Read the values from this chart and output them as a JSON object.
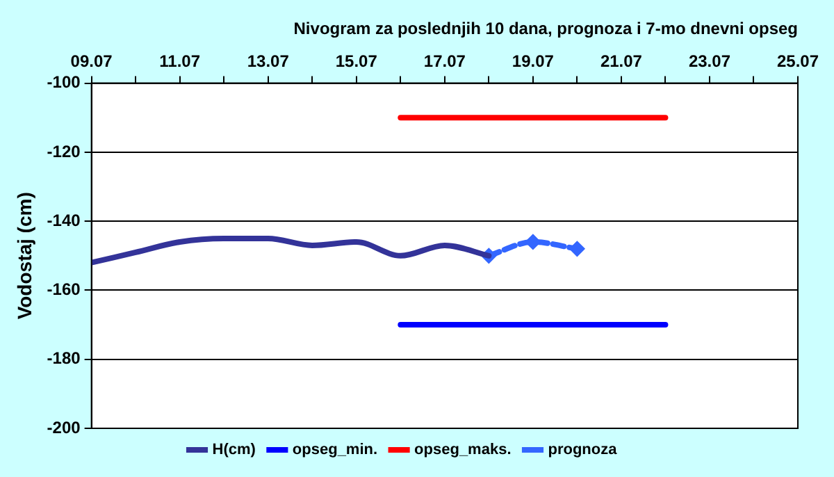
{
  "chart_data": {
    "type": "line",
    "title": "Nivogram za poslednjih 10 dana, prognoza i 7-mo dnevni opseg",
    "ylabel": "Vodostaj (cm)",
    "series": [
      {
        "name": "H(cm)",
        "color": "#333399",
        "x": [
          "--07-09",
          "--07-10",
          "--07-11",
          "--07-12",
          "--07-13",
          "--07-14",
          "--07-15",
          "--07-16",
          "--07-17",
          "--07-18"
        ],
        "values": [
          -152,
          -149,
          -146,
          -145,
          -145,
          -147,
          -146,
          -150,
          -147,
          -150
        ],
        "marker": "none",
        "line_style": "solid"
      },
      {
        "name": "opseg_min.",
        "color": "#0000ff",
        "x": [
          "--07-16",
          "--07-22"
        ],
        "values": [
          -170,
          -170
        ],
        "marker": "none",
        "line_style": "solid"
      },
      {
        "name": "opseg_maks.",
        "color": "#ff0000",
        "x": [
          "--07-16",
          "--07-22"
        ],
        "values": [
          -110,
          -110
        ],
        "marker": "none",
        "line_style": "solid"
      },
      {
        "name": "prognoza",
        "color": "#3366ff",
        "x": [
          "--07-18",
          "--07-19",
          "--07-20"
        ],
        "values": [
          -150,
          -146,
          -148
        ],
        "marker": "diamond",
        "line_style": "dashed"
      }
    ],
    "xlim": [
      "--07-09",
      "--07-25"
    ],
    "xticks": [
      {
        "value": "--07-09",
        "label": "09.07"
      },
      {
        "value": "--07-10",
        "label": null
      },
      {
        "value": "--07-11",
        "label": "11.07"
      },
      {
        "value": "--07-12",
        "label": null
      },
      {
        "value": "--07-13",
        "label": "13.07"
      },
      {
        "value": "--07-14",
        "label": null
      },
      {
        "value": "--07-15",
        "label": "15.07"
      },
      {
        "value": "--07-16",
        "label": null
      },
      {
        "value": "--07-17",
        "label": "17.07"
      },
      {
        "value": "--07-18",
        "label": null
      },
      {
        "value": "--07-19",
        "label": "19.07"
      },
      {
        "value": "--07-20",
        "label": null
      },
      {
        "value": "--07-21",
        "label": "21.07"
      },
      {
        "value": "--07-22",
        "label": null
      },
      {
        "value": "--07-23",
        "label": "23.07"
      },
      {
        "value": "--07-24",
        "label": null
      },
      {
        "value": "--07-25",
        "label": "25.07"
      }
    ],
    "ylim": [
      -200,
      -100
    ],
    "yticks": [
      -200,
      -180,
      -160,
      -140,
      -120,
      -100
    ],
    "grid": "y",
    "legend": "bottom"
  }
}
